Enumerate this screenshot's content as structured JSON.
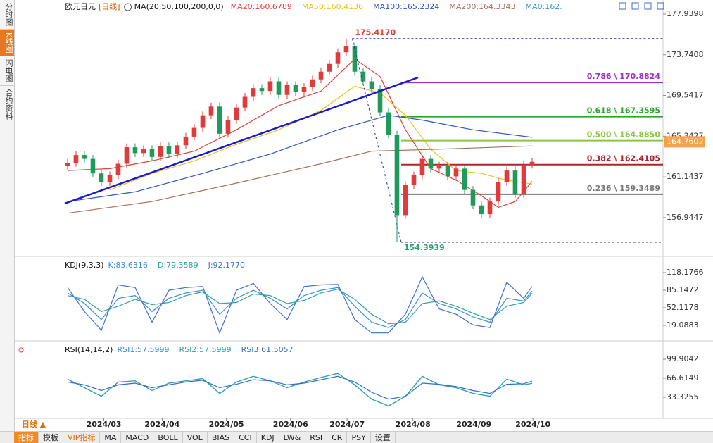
{
  "sidebar": {
    "tabs": [
      "分时图",
      "K线图",
      "闪电图",
      "合约资料"
    ],
    "active": 1
  },
  "bottom_bar": {
    "period": "日线 ▲",
    "tabs": [
      "指标",
      "模板",
      "VIP指标",
      "MA",
      "MACD",
      "BOLL",
      "VOL",
      "BIAS",
      "CCI",
      "KDJ",
      "LW&",
      "RSI",
      "CR",
      "PSY",
      "设置"
    ],
    "active": 0,
    "highlight": 2
  },
  "chart_data": [
    {
      "type": "candlestick",
      "title": "欧元日元",
      "period": "[日线]",
      "indicator_label": "MA(20,50,100,200,0,0)",
      "extra_legend": "MA0:162.",
      "up_color": "#e03a3a",
      "down_color": "#1f9a5a",
      "categories": [
        null,
        null,
        null,
        null,
        null,
        null,
        null,
        null,
        null,
        null,
        null,
        null,
        null,
        null,
        null,
        null,
        null,
        null,
        null,
        null,
        null,
        null,
        null,
        null,
        null,
        null,
        null,
        null,
        null,
        null,
        null,
        null,
        null,
        null,
        null,
        null,
        null,
        null,
        null,
        null,
        null,
        null,
        null,
        null,
        null,
        null,
        null,
        null,
        null,
        null,
        null,
        null,
        null,
        null,
        null,
        null
      ],
      "open": [
        162.3,
        162.6,
        163.4,
        163.0,
        161.5,
        160.6,
        161.3,
        162.5,
        164.2,
        163.6,
        164.0,
        163.2,
        164.3,
        163.5,
        164.4,
        165.3,
        166.2,
        167.5,
        168.4,
        165.6,
        167.0,
        168.3,
        169.4,
        170.3,
        170.0,
        171.0,
        169.6,
        170.6,
        169.9,
        170.4,
        171.2,
        172.0,
        172.8,
        174.0,
        174.6,
        172.0,
        171.0,
        170.2,
        167.8,
        165.5,
        157.2,
        160.3,
        161.3,
        163.0,
        162.0,
        162.3,
        161.2,
        162.0,
        159.8,
        158.2,
        157.3,
        158.6,
        160.6,
        161.8,
        159.4,
        162.4
      ],
      "high": [
        163.0,
        163.8,
        163.8,
        163.4,
        161.9,
        161.7,
        162.9,
        164.6,
        164.6,
        164.4,
        164.4,
        164.7,
        164.7,
        164.8,
        165.7,
        166.6,
        167.9,
        168.8,
        168.8,
        167.4,
        168.7,
        169.8,
        170.7,
        170.7,
        171.4,
        171.4,
        171.0,
        171.0,
        170.8,
        171.6,
        172.4,
        173.2,
        174.4,
        175.417,
        175.0,
        172.4,
        171.4,
        170.6,
        168.2,
        165.9,
        160.7,
        161.7,
        163.4,
        163.4,
        162.7,
        162.7,
        162.4,
        162.4,
        160.2,
        158.6,
        159.0,
        161.0,
        162.2,
        162.2,
        162.8,
        163.1
      ],
      "low": [
        161.9,
        162.2,
        162.6,
        161.1,
        160.2,
        160.2,
        160.9,
        162.1,
        163.2,
        163.2,
        162.8,
        162.8,
        163.1,
        163.1,
        164.0,
        164.9,
        165.8,
        167.1,
        165.2,
        165.2,
        166.6,
        167.9,
        169.0,
        169.6,
        169.6,
        169.2,
        169.2,
        169.5,
        169.5,
        170.0,
        170.8,
        171.6,
        172.4,
        173.6,
        171.6,
        170.6,
        169.8,
        167.4,
        165.1,
        154.3939,
        156.8,
        159.9,
        160.9,
        161.6,
        161.6,
        160.8,
        160.8,
        159.4,
        157.8,
        156.9,
        156.9,
        158.2,
        160.2,
        159.0,
        159.0,
        162.0
      ],
      "close": [
        162.6,
        163.4,
        163.0,
        161.5,
        160.6,
        161.3,
        162.5,
        164.2,
        163.6,
        164.0,
        163.2,
        164.3,
        163.5,
        164.4,
        165.3,
        166.2,
        167.5,
        168.4,
        165.6,
        167.0,
        168.3,
        169.4,
        170.3,
        170.0,
        171.0,
        169.6,
        170.6,
        169.9,
        170.4,
        171.2,
        172.0,
        172.8,
        174.0,
        174.6,
        172.0,
        171.0,
        170.2,
        167.8,
        165.5,
        157.2,
        160.3,
        161.3,
        163.0,
        162.0,
        162.3,
        161.2,
        162.0,
        159.8,
        158.2,
        157.3,
        158.6,
        160.6,
        161.8,
        159.4,
        162.4,
        162.7
      ],
      "xlim": [
        -0.33,
        70.5
      ],
      "ylim": [
        153.09,
        178.81
      ],
      "yticks": [
        177.9398,
        173.7408,
        169.5417,
        165.3427,
        161.1437,
        156.9447
      ],
      "xticks": [
        {
          "value": 4.3,
          "label": "2024/03"
        },
        {
          "value": 11.2,
          "label": "2024/04"
        },
        {
          "value": 18.8,
          "label": "2024/05"
        },
        {
          "value": 26.4,
          "label": "2024/06"
        },
        {
          "value": 33.1,
          "label": "2024/07"
        },
        {
          "value": 40.9,
          "label": "2024/08"
        },
        {
          "value": 48.1,
          "label": "2024/09"
        },
        {
          "value": 55.1,
          "label": "2024/10"
        }
      ],
      "series": [
        {
          "name": "MA20:160.6789",
          "color": "#e0403a",
          "x": [
            0,
            5,
            10,
            15,
            20,
            25,
            30,
            34,
            37,
            40,
            43,
            46,
            49,
            51,
            53,
            55
          ],
          "values": [
            161.8,
            162.0,
            162.8,
            163.8,
            166.0,
            168.5,
            170.0,
            173.3,
            171.5,
            166.0,
            162.0,
            160.8,
            159.2,
            158.0,
            158.6,
            160.6789
          ]
        },
        {
          "name": "MA50:160.4136",
          "color": "#e8c21a",
          "x": [
            5,
            10,
            15,
            20,
            25,
            30,
            34,
            37,
            40,
            43,
            46,
            49,
            52,
            55
          ],
          "values": [
            159.8,
            161.5,
            162.8,
            164.5,
            166.0,
            168.0,
            170.5,
            169.8,
            167.5,
            164.0,
            161.8,
            161.5,
            160.8,
            160.4136
          ]
        },
        {
          "name": "MA100:165.2324",
          "color": "#2f57c4",
          "x": [
            0,
            8,
            16,
            24,
            32,
            38,
            42,
            48,
            55
          ],
          "values": [
            158.6,
            159.6,
            161.5,
            163.5,
            166.0,
            167.5,
            167.0,
            166.0,
            165.2324
          ]
        },
        {
          "name": "MA200:164.3343",
          "color": "#a8705a",
          "x": [
            0,
            10,
            20,
            30,
            36,
            44,
            55
          ],
          "values": [
            157.4,
            158.6,
            160.5,
            162.5,
            163.8,
            164.0,
            164.3343
          ]
        }
      ],
      "trendline": {
        "color": "#1a1acc",
        "x": [
          -0.33,
          41.5
        ],
        "values": [
          158.4,
          171.4
        ]
      },
      "annotations": [
        {
          "text": "175.4170",
          "x": 33.7,
          "value": 175.417,
          "color": "#e0403a"
        },
        {
          "text": "154.3939",
          "x": 39.5,
          "value": 154.3939,
          "color": "#2aa070"
        }
      ],
      "fib_levels": [
        {
          "label": "0.786 \\ 170.8824",
          "value": 170.8824,
          "color": "#9b30c8"
        },
        {
          "label": "0.618 \\ 167.3595",
          "value": 167.3595,
          "color": "#2ea52e"
        },
        {
          "label": "0.500 \\ 164.8850",
          "value": 164.885,
          "color": "#8cc63f"
        },
        {
          "label": "0.382 \\ 162.4105",
          "value": 162.4105,
          "color": "#b0232a"
        },
        {
          "label": "0.236 \\ 159.3489",
          "value": 159.3489,
          "color": "#777777"
        }
      ],
      "last_price": {
        "label": "164.7602",
        "value": 164.7602,
        "color": "#f5a04a"
      }
    },
    {
      "type": "line",
      "title": "KDJ(9,3,3)",
      "xlim": [
        -0.33,
        70.5
      ],
      "ylim": [
        -4.69,
        143.28
      ],
      "yticks": [
        118.1766,
        85.1472,
        52.1178,
        19.0883
      ],
      "x": [
        0,
        2,
        4,
        6,
        8,
        10,
        12,
        14,
        16,
        18,
        20,
        22,
        24,
        26,
        28,
        30,
        32,
        34,
        36,
        38,
        40,
        42,
        44,
        46,
        48,
        50,
        52,
        54,
        55
      ],
      "series": [
        {
          "name": "K:83.6316",
          "color": "#3b8fd6",
          "values": [
            80,
            60,
            30,
            70,
            75,
            45,
            70,
            80,
            85,
            40,
            70,
            85,
            70,
            50,
            75,
            85,
            90,
            55,
            25,
            15,
            30,
            80,
            60,
            50,
            35,
            25,
            70,
            65,
            83.6316
          ]
        },
        {
          "name": "D:79.3589",
          "color": "#2fa59a",
          "values": [
            75,
            68,
            45,
            55,
            68,
            58,
            62,
            75,
            82,
            60,
            62,
            78,
            75,
            60,
            66,
            80,
            87,
            68,
            40,
            22,
            25,
            60,
            65,
            55,
            42,
            30,
            55,
            62,
            79.3589
          ]
        },
        {
          "name": "J:92.1770",
          "color": "#3f6fd0",
          "values": [
            90,
            45,
            10,
            95,
            90,
            25,
            85,
            90,
            92,
            5,
            85,
            98,
            60,
            30,
            92,
            95,
            96,
            30,
            5,
            5,
            40,
            110,
            50,
            40,
            20,
            15,
            100,
            70,
            92.177
          ]
        }
      ]
    },
    {
      "type": "line",
      "title": "RSI(14,14,2)",
      "xlim": [
        -0.33,
        70.5
      ],
      "ylim": [
        -1.2,
        124.56
      ],
      "yticks": [
        99.9042,
        66.6149,
        33.3255
      ],
      "x": [
        0,
        2,
        4,
        6,
        8,
        10,
        12,
        14,
        16,
        18,
        20,
        22,
        24,
        26,
        28,
        30,
        32,
        34,
        36,
        38,
        40,
        42,
        44,
        46,
        48,
        50,
        52,
        54,
        55
      ],
      "series": [
        {
          "name": "RSI1:57.5999",
          "color": "#3b8fd6",
          "values": [
            65,
            50,
            35,
            60,
            62,
            45,
            58,
            62,
            66,
            40,
            60,
            70,
            62,
            50,
            60,
            68,
            75,
            55,
            30,
            18,
            35,
            70,
            55,
            50,
            40,
            35,
            65,
            55,
            57.5999
          ]
        },
        {
          "name": "RSI2:57.5999",
          "color": "#2fa59a",
          "values": [
            65,
            50,
            35,
            60,
            62,
            45,
            58,
            62,
            66,
            40,
            60,
            70,
            62,
            50,
            60,
            68,
            75,
            55,
            30,
            18,
            35,
            70,
            55,
            50,
            40,
            35,
            65,
            55,
            57.5999
          ]
        },
        {
          "name": "RSI3:61.5057",
          "color": "#2f6fcf",
          "values": [
            60,
            55,
            45,
            55,
            58,
            50,
            55,
            60,
            63,
            50,
            56,
            64,
            62,
            55,
            58,
            64,
            70,
            60,
            42,
            30,
            35,
            58,
            56,
            52,
            45,
            40,
            56,
            57,
            61.5057
          ]
        }
      ]
    }
  ]
}
